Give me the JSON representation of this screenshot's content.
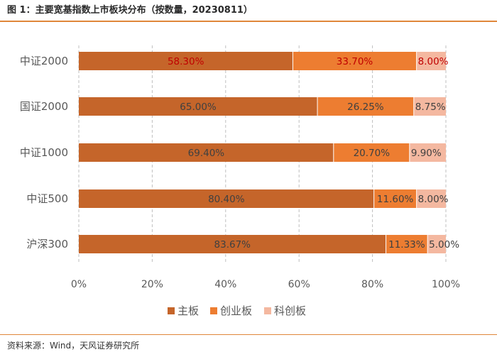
{
  "figure": {
    "title": "图 1：主要宽基指数上市板块分布（按数量，20230811）",
    "source": "资料来源：Wind，天风证券研究所"
  },
  "chart_data": {
    "type": "bar",
    "orientation": "horizontal",
    "stacked": true,
    "categories": [
      "中证2000",
      "国证2000",
      "中证1000",
      "中证500",
      "沪深300"
    ],
    "series": [
      {
        "name": "主板",
        "color": "#c5652a",
        "values": [
          58.3,
          65.0,
          69.4,
          80.4,
          83.67
        ]
      },
      {
        "name": "创业板",
        "color": "#ed7d31",
        "values": [
          33.7,
          26.25,
          20.7,
          11.6,
          11.33
        ]
      },
      {
        "name": "科创板",
        "color": "#f4b8a0",
        "values": [
          8.0,
          8.75,
          9.9,
          8.0,
          5.0
        ]
      }
    ],
    "data_labels": [
      [
        "58.30%",
        "33.70%",
        "8.00%"
      ],
      [
        "65.00%",
        "26.25%",
        "8.75%"
      ],
      [
        "69.40%",
        "20.70%",
        "9.90%"
      ],
      [
        "80.40%",
        "11.60%",
        "8.00%"
      ],
      [
        "83.67%",
        "11.33%",
        "5.00%"
      ]
    ],
    "highlight_row": 0,
    "highlight_label_color": "#c00000",
    "x_ticks": [
      "0%",
      "20%",
      "40%",
      "60%",
      "80%",
      "100%"
    ],
    "xlim": [
      0,
      100
    ],
    "grid": "vertical-dashed",
    "legend_position": "bottom"
  }
}
